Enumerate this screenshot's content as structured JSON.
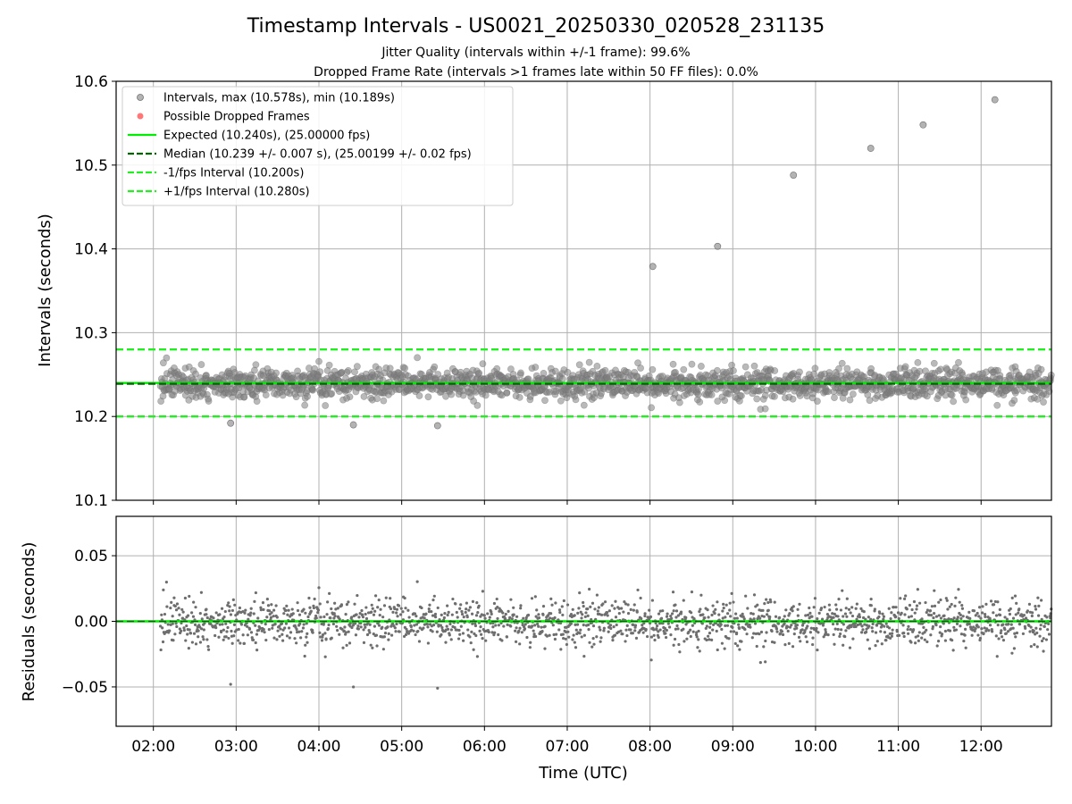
{
  "header": {
    "title": "Timestamp Intervals - US0021_20250330_020528_231135",
    "subtitle1": "Jitter Quality (intervals within +/-1 frame): 99.6%",
    "subtitle2": "Dropped Frame Rate (intervals >1 frames late within 50 FF files): 0.0%"
  },
  "colors": {
    "points": "#808080",
    "dropped": "#ff5555",
    "expected": "#00ee00",
    "median": "#006400",
    "fps_lines": "#22ee22",
    "grid": "#b0b0b0"
  },
  "chart_data": [
    {
      "type": "scatter",
      "ylabel": "Intervals (seconds)",
      "ylim": [
        10.1,
        10.6
      ],
      "yticks": [
        10.1,
        10.2,
        10.3,
        10.4,
        10.5,
        10.6
      ],
      "ytick_labels": [
        "10.1",
        "10.2",
        "10.3",
        "10.4",
        "10.5",
        "10.6"
      ],
      "xlim_hours": [
        1.55,
        12.85
      ],
      "grid": true,
      "legend_position": "top-left",
      "legend": [
        {
          "label": "Intervals, max (10.578s), min (10.189s)",
          "kind": "marker-gray"
        },
        {
          "label": "Possible Dropped Frames",
          "kind": "marker-red"
        },
        {
          "label": "Expected (10.240s), (25.00000 fps)",
          "kind": "solid-green"
        },
        {
          "label": "Median (10.239 +/- 0.007 s), (25.00199 +/- 0.02 fps)",
          "kind": "dash-darkgreen"
        },
        {
          "label": "-1/fps Interval (10.200s)",
          "kind": "dash-green"
        },
        {
          "label": "+1/fps Interval (10.280s)",
          "kind": "dash-green"
        }
      ],
      "hlines": {
        "expected": 10.24,
        "median": 10.239,
        "minus_fps": 10.2,
        "plus_fps": 10.28
      },
      "max": 10.578,
      "min": 10.189,
      "outliers": [
        {
          "t": "08:02",
          "y": 10.379
        },
        {
          "t": "08:49",
          "y": 10.403
        },
        {
          "t": "09:44",
          "y": 10.488
        },
        {
          "t": "10:40",
          "y": 10.52
        },
        {
          "t": "11:18",
          "y": 10.548
        },
        {
          "t": "12:10",
          "y": 10.578
        },
        {
          "t": "02:56",
          "y": 10.192
        },
        {
          "t": "04:25",
          "y": 10.19
        },
        {
          "t": "05:26",
          "y": 10.189
        }
      ],
      "bulk": {
        "t_start": "02:05",
        "t_end": "12:51",
        "center": 10.239,
        "spread_sd": 0.007,
        "count": 1800
      }
    },
    {
      "type": "scatter",
      "ylabel": "Residuals (seconds)",
      "xlabel": "Time (UTC)",
      "ylim": [
        -0.08,
        0.08
      ],
      "yticks": [
        -0.05,
        0.0,
        0.05
      ],
      "ytick_labels": [
        "−0.05",
        "0.00",
        "0.05"
      ],
      "xticks": [
        "02:00",
        "03:00",
        "04:00",
        "05:00",
        "06:00",
        "07:00",
        "08:00",
        "09:00",
        "10:00",
        "11:00",
        "12:00"
      ],
      "grid": true,
      "zero_line": 0.0
    }
  ]
}
